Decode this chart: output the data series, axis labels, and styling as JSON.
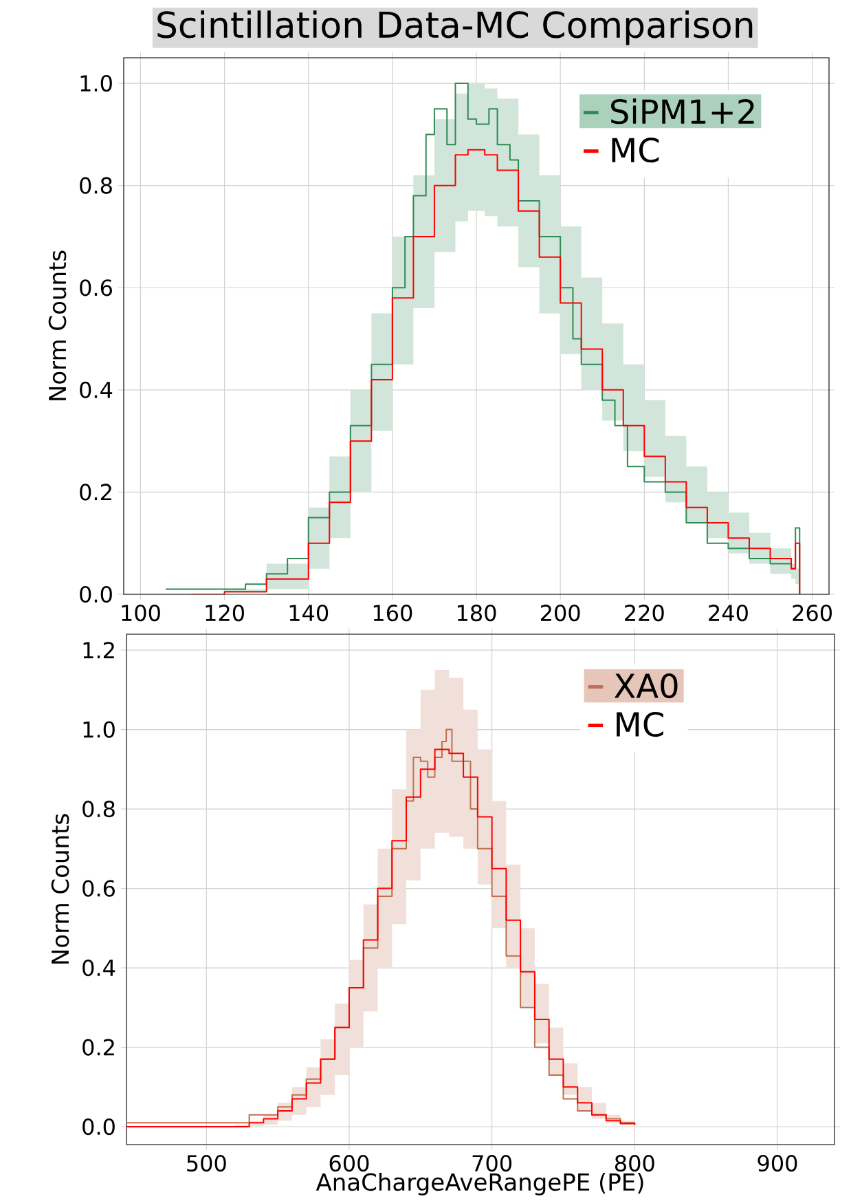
{
  "chart_data": [
    {
      "type": "step",
      "title": "Scintillation Data-MC Comparison",
      "ylabel": "Norm Counts",
      "xlim": [
        96,
        264
      ],
      "ylim": [
        0,
        1.05
      ],
      "xticks": [
        100,
        120,
        140,
        160,
        180,
        200,
        220,
        240,
        260
      ],
      "yticks": [
        {
          "value": 0,
          "label": "0.0"
        },
        {
          "value": 0.2,
          "label": "0.2"
        },
        {
          "value": 0.4,
          "label": "0.4"
        },
        {
          "value": 0.6,
          "label": "0.6"
        },
        {
          "value": 0.8,
          "label": "0.8"
        },
        {
          "value": 1.0,
          "label": "1.0"
        }
      ],
      "grid": true,
      "legend": "top right",
      "series": [
        {
          "name": "SiPM1+2",
          "color": "#2e8b57",
          "x": [
            106,
            110,
            115,
            120,
            125,
            130,
            135,
            140,
            145,
            150,
            155,
            160,
            163,
            165,
            168,
            170,
            173,
            175,
            178,
            180,
            183,
            185,
            188,
            190,
            195,
            200,
            203,
            205,
            210,
            213,
            216,
            220,
            225,
            230,
            235,
            240,
            245,
            250,
            255,
            256,
            257
          ],
          "values": [
            0.01,
            0.01,
            0.01,
            0.01,
            0.02,
            0.04,
            0.07,
            0.15,
            0.2,
            0.33,
            0.45,
            0.6,
            0.7,
            0.78,
            0.9,
            0.95,
            0.88,
            1.0,
            0.93,
            0.92,
            0.95,
            0.88,
            0.85,
            0.77,
            0.7,
            0.6,
            0.5,
            0.45,
            0.38,
            0.33,
            0.25,
            0.22,
            0.2,
            0.14,
            0.1,
            0.09,
            0.07,
            0.06,
            0.05,
            0.13,
            0
          ]
        },
        {
          "name": "MC",
          "color": "#ff0000",
          "x": [
            112,
            120,
            130,
            140,
            145,
            150,
            155,
            160,
            165,
            170,
            175,
            178,
            182,
            185,
            190,
            195,
            200,
            205,
            210,
            215,
            220,
            225,
            230,
            235,
            240,
            245,
            250,
            255,
            256,
            257
          ],
          "values": [
            0,
            0.005,
            0.03,
            0.1,
            0.18,
            0.3,
            0.42,
            0.58,
            0.7,
            0.8,
            0.86,
            0.87,
            0.86,
            0.83,
            0.75,
            0.66,
            0.57,
            0.48,
            0.4,
            0.33,
            0.27,
            0.22,
            0.17,
            0.14,
            0.11,
            0.09,
            0.07,
            0.05,
            0.1,
            0
          ],
          "upper": [
            0,
            0.01,
            0.06,
            0.17,
            0.27,
            0.4,
            0.55,
            0.7,
            0.82,
            0.93,
            0.98,
            1.0,
            0.99,
            0.97,
            0.9,
            0.82,
            0.72,
            0.62,
            0.53,
            0.45,
            0.38,
            0.31,
            0.25,
            0.2,
            0.16,
            0.12,
            0.09,
            0.06,
            0.05,
            0.05
          ],
          "lower": [
            0,
            0,
            0.01,
            0.05,
            0.11,
            0.2,
            0.32,
            0.45,
            0.56,
            0.67,
            0.73,
            0.75,
            0.74,
            0.72,
            0.64,
            0.55,
            0.47,
            0.4,
            0.34,
            0.28,
            0.23,
            0.18,
            0.14,
            0.11,
            0.08,
            0.06,
            0.04,
            0.03,
            0.02,
            0.02
          ]
        }
      ]
    },
    {
      "type": "step",
      "xlabel": "AnaChargeAveRangePE (PE)",
      "ylabel": "Norm Counts",
      "xlim": [
        444,
        940
      ],
      "ylim": [
        -0.045,
        1.24
      ],
      "xticks": [
        500,
        600,
        700,
        800,
        900
      ],
      "yticks": [
        {
          "value": 0,
          "label": "0.0"
        },
        {
          "value": 0.2,
          "label": "0.2"
        },
        {
          "value": 0.4,
          "label": "0.4"
        },
        {
          "value": 0.6,
          "label": "0.6"
        },
        {
          "value": 0.8,
          "label": "0.8"
        },
        {
          "value": 1.0,
          "label": "1.0"
        },
        {
          "value": 1.2,
          "label": "1.2"
        }
      ],
      "grid": true,
      "legend": "top right",
      "series": [
        {
          "name": "XA0",
          "color": "#c07050",
          "x": [
            444,
            480,
            520,
            530,
            540,
            550,
            560,
            570,
            580,
            590,
            600,
            610,
            620,
            630,
            640,
            645,
            650,
            655,
            660,
            665,
            668,
            672,
            678,
            685,
            690,
            700,
            710,
            720,
            730,
            740,
            750,
            760,
            770,
            780,
            790,
            800
          ],
          "values": [
            0.01,
            0.01,
            0.01,
            0.03,
            0.03,
            0.05,
            0.08,
            0.12,
            0.17,
            0.25,
            0.35,
            0.45,
            0.58,
            0.7,
            0.82,
            0.93,
            0.92,
            0.88,
            0.93,
            0.97,
            1.0,
            0.92,
            0.92,
            0.8,
            0.7,
            0.58,
            0.43,
            0.3,
            0.2,
            0.13,
            0.07,
            0.04,
            0.03,
            0.02,
            0.01,
            0.005
          ]
        },
        {
          "name": "MC",
          "color": "#ff0000",
          "x": [
            444,
            520,
            530,
            540,
            550,
            560,
            570,
            580,
            590,
            600,
            610,
            620,
            630,
            640,
            650,
            660,
            665,
            670,
            680,
            690,
            700,
            710,
            720,
            730,
            740,
            750,
            760,
            770,
            780,
            790,
            800
          ],
          "values": [
            0,
            0,
            0.01,
            0.02,
            0.04,
            0.07,
            0.11,
            0.17,
            0.25,
            0.35,
            0.47,
            0.6,
            0.72,
            0.83,
            0.9,
            0.95,
            0.95,
            0.94,
            0.88,
            0.78,
            0.65,
            0.52,
            0.39,
            0.27,
            0.17,
            0.1,
            0.06,
            0.03,
            0.015,
            0.008,
            0.005
          ],
          "upper": [
            0,
            0.005,
            0.015,
            0.03,
            0.06,
            0.1,
            0.15,
            0.22,
            0.31,
            0.42,
            0.56,
            0.7,
            0.85,
            1.0,
            1.1,
            1.15,
            1.15,
            1.13,
            1.05,
            0.95,
            0.82,
            0.66,
            0.5,
            0.36,
            0.25,
            0.16,
            0.1,
            0.06,
            0.03,
            0.015,
            0.01
          ],
          "lower": [
            0,
            0,
            0.002,
            0.005,
            0.015,
            0.03,
            0.05,
            0.08,
            0.13,
            0.2,
            0.29,
            0.4,
            0.51,
            0.62,
            0.7,
            0.74,
            0.74,
            0.73,
            0.7,
            0.61,
            0.5,
            0.4,
            0.3,
            0.21,
            0.13,
            0.08,
            0.04,
            0.02,
            0.01,
            0.005,
            0
          ]
        }
      ]
    }
  ]
}
